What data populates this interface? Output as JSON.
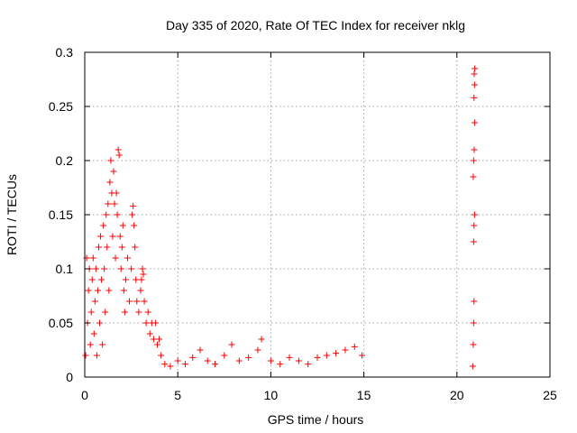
{
  "chart_data": {
    "type": "scatter",
    "title": "Day 335 of 2020, Rate Of TEC Index for receiver nklg",
    "xlabel": "GPS time / hours",
    "ylabel": "ROTI / TECUs",
    "xlim": [
      0,
      25
    ],
    "ylim": [
      0,
      0.3
    ],
    "x_ticks": [
      0,
      5,
      10,
      15,
      20,
      25
    ],
    "y_ticks": [
      0,
      0.05,
      0.1,
      0.15,
      0.2,
      0.25,
      0.3
    ],
    "x_tick_labels": [
      "0",
      "5",
      "10",
      "15",
      "20",
      "25"
    ],
    "y_tick_labels": [
      "0",
      "0.05",
      "0.1",
      "0.15",
      "0.2",
      "0.25",
      "0.3"
    ],
    "grid": true,
    "marker": "+",
    "series_color": "#ff0000",
    "series": [
      {
        "name": "ROTI",
        "points": [
          [
            0.05,
            0.02
          ],
          [
            0.1,
            0.11
          ],
          [
            0.15,
            0.05
          ],
          [
            0.2,
            0.08
          ],
          [
            0.25,
            0.1
          ],
          [
            0.3,
            0.03
          ],
          [
            0.35,
            0.06
          ],
          [
            0.4,
            0.09
          ],
          [
            0.45,
            0.11
          ],
          [
            0.5,
            0.04
          ],
          [
            0.55,
            0.07
          ],
          [
            0.6,
            0.1
          ],
          [
            0.65,
            0.02
          ],
          [
            0.7,
            0.08
          ],
          [
            0.75,
            0.12
          ],
          [
            0.8,
            0.05
          ],
          [
            0.85,
            0.13
          ],
          [
            0.9,
            0.09
          ],
          [
            0.95,
            0.03
          ],
          [
            1.0,
            0.14
          ],
          [
            1.05,
            0.1
          ],
          [
            1.1,
            0.06
          ],
          [
            1.15,
            0.15
          ],
          [
            1.2,
            0.12
          ],
          [
            1.25,
            0.16
          ],
          [
            1.3,
            0.08
          ],
          [
            1.35,
            0.18
          ],
          [
            1.4,
            0.2
          ],
          [
            1.45,
            0.17
          ],
          [
            1.5,
            0.13
          ],
          [
            1.55,
            0.19
          ],
          [
            1.6,
            0.16
          ],
          [
            1.65,
            0.11
          ],
          [
            1.7,
            0.17
          ],
          [
            1.75,
            0.15
          ],
          [
            1.8,
            0.21
          ],
          [
            1.85,
            0.205
          ],
          [
            1.9,
            0.13
          ],
          [
            1.95,
            0.1
          ],
          [
            2.0,
            0.12
          ],
          [
            2.05,
            0.14
          ],
          [
            2.1,
            0.08
          ],
          [
            2.15,
            0.06
          ],
          [
            2.2,
            0.09
          ],
          [
            2.3,
            0.11
          ],
          [
            2.4,
            0.07
          ],
          [
            2.5,
            0.1
          ],
          [
            2.55,
            0.15
          ],
          [
            2.6,
            0.158
          ],
          [
            2.65,
            0.14
          ],
          [
            2.7,
            0.12
          ],
          [
            2.75,
            0.09
          ],
          [
            2.8,
            0.07
          ],
          [
            2.9,
            0.06
          ],
          [
            3.0,
            0.08
          ],
          [
            3.05,
            0.09
          ],
          [
            3.1,
            0.1
          ],
          [
            3.15,
            0.095
          ],
          [
            3.2,
            0.07
          ],
          [
            3.3,
            0.05
          ],
          [
            3.4,
            0.06
          ],
          [
            3.5,
            0.04
          ],
          [
            3.6,
            0.05
          ],
          [
            3.7,
            0.035
          ],
          [
            3.8,
            0.05
          ],
          [
            3.9,
            0.03
          ],
          [
            4.0,
            0.035
          ],
          [
            4.1,
            0.02
          ],
          [
            4.3,
            0.012
          ],
          [
            4.6,
            0.01
          ],
          [
            5.0,
            0.015
          ],
          [
            5.4,
            0.012
          ],
          [
            5.8,
            0.018
          ],
          [
            6.2,
            0.025
          ],
          [
            6.6,
            0.015
          ],
          [
            7.0,
            0.012
          ],
          [
            7.5,
            0.02
          ],
          [
            7.9,
            0.03
          ],
          [
            8.3,
            0.015
          ],
          [
            8.8,
            0.018
          ],
          [
            9.3,
            0.025
          ],
          [
            9.5,
            0.035
          ],
          [
            10.0,
            0.015
          ],
          [
            10.5,
            0.012
          ],
          [
            11.0,
            0.018
          ],
          [
            11.5,
            0.015
          ],
          [
            12.0,
            0.012
          ],
          [
            12.5,
            0.018
          ],
          [
            13.0,
            0.02
          ],
          [
            13.5,
            0.022
          ],
          [
            14.0,
            0.025
          ],
          [
            14.5,
            0.028
          ],
          [
            14.9,
            0.02
          ],
          [
            20.85,
            0.01
          ],
          [
            20.88,
            0.03
          ],
          [
            20.9,
            0.05
          ],
          [
            20.92,
            0.07
          ],
          [
            20.9,
            0.125
          ],
          [
            20.92,
            0.14
          ],
          [
            20.95,
            0.15
          ],
          [
            20.88,
            0.185
          ],
          [
            20.9,
            0.2
          ],
          [
            20.93,
            0.21
          ],
          [
            20.95,
            0.235
          ],
          [
            20.92,
            0.258
          ],
          [
            20.95,
            0.27
          ],
          [
            20.93,
            0.28
          ],
          [
            20.96,
            0.285
          ]
        ]
      }
    ]
  }
}
